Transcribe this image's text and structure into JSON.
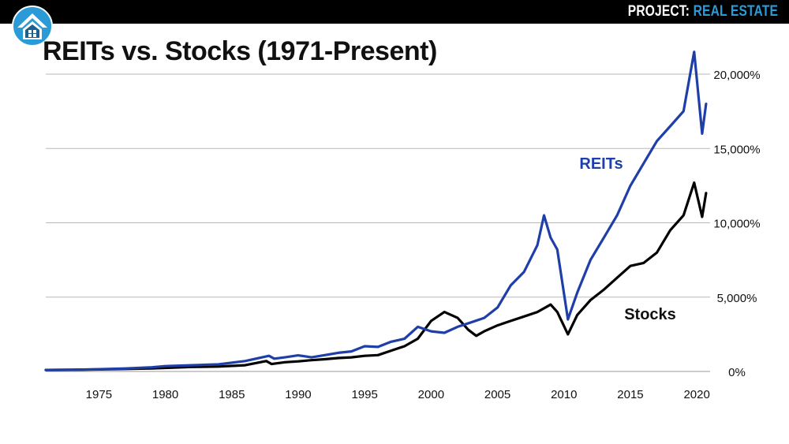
{
  "header": {
    "brand_prefix": "PROJECT:",
    "brand_accent": "REAL ESTATE"
  },
  "logo": {
    "icon": "house-arrow-icon"
  },
  "chart_data": {
    "type": "line",
    "title": "REITs vs. Stocks (1971-Present)",
    "xlabel": "",
    "ylabel": "",
    "xlim": [
      1971,
      2021
    ],
    "ylim": [
      0,
      20000
    ],
    "grid": true,
    "x_ticks": [
      1975,
      1980,
      1985,
      1990,
      1995,
      2000,
      2005,
      2010,
      2015,
      2020
    ],
    "x_tick_labels": [
      "1975",
      "1980",
      "1985",
      "1990",
      "1995",
      "2000",
      "2005",
      "2010",
      "2015",
      "2020"
    ],
    "y_ticks": [
      0,
      5000,
      10000,
      15000,
      20000
    ],
    "y_tick_labels": [
      "0%",
      "5,000%",
      "10,000%",
      "15,000%",
      "20,000%"
    ],
    "colors": {
      "reits": "#1f3fa8",
      "stocks": "#000000",
      "grid": "#b8b8b8",
      "axis": "#9a9a9a"
    },
    "series": [
      {
        "name": "REITs",
        "x": [
          1971,
          1973,
          1975,
          1977,
          1979,
          1980,
          1982,
          1984,
          1986,
          1987.8,
          1988.2,
          1989,
          1990,
          1991,
          1992,
          1993,
          1994,
          1995,
          1996,
          1997,
          1998,
          1999,
          2000,
          2001,
          2002,
          2003,
          2004,
          2005,
          2006,
          2007,
          2008,
          2008.5,
          2009,
          2009.5,
          2010.3,
          2011,
          2012,
          2013,
          2014,
          2015,
          2016,
          2017,
          2018,
          2019,
          2019.8,
          2020.4,
          2020.7
        ],
        "values": [
          100,
          110,
          150,
          200,
          280,
          360,
          420,
          480,
          700,
          1050,
          860,
          950,
          1080,
          950,
          1100,
          1250,
          1350,
          1700,
          1650,
          2000,
          2200,
          3000,
          2700,
          2600,
          3000,
          3300,
          3600,
          4300,
          5800,
          6700,
          8500,
          10500,
          9000,
          8200,
          3500,
          5300,
          7500,
          9000,
          10500,
          12500,
          14000,
          15500,
          16500,
          17500,
          21500,
          16000,
          18000
        ]
      },
      {
        "name": "Stocks",
        "x": [
          1971,
          1973,
          1975,
          1977,
          1979,
          1980,
          1982,
          1984,
          1986,
          1987.6,
          1988,
          1989,
          1990,
          1991,
          1992,
          1993,
          1994,
          1995,
          1996,
          1997,
          1998,
          1999,
          2000,
          2001,
          2002,
          2002.8,
          2003.4,
          2004,
          2005,
          2006,
          2007,
          2008,
          2009,
          2009.5,
          2010.3,
          2011,
          2012,
          2013,
          2014,
          2015,
          2016,
          2017,
          2018,
          2019,
          2019.8,
          2020.4,
          2020.7
        ],
        "values": [
          100,
          110,
          140,
          170,
          200,
          240,
          300,
          330,
          420,
          700,
          500,
          620,
          680,
          760,
          820,
          900,
          950,
          1050,
          1100,
          1400,
          1700,
          2200,
          3400,
          4000,
          3600,
          2800,
          2400,
          2700,
          3100,
          3400,
          3700,
          4000,
          4500,
          4000,
          2500,
          3800,
          4800,
          5500,
          6300,
          7100,
          7300,
          8000,
          9500,
          10500,
          12700,
          10400,
          12000
        ]
      }
    ],
    "annotations": [
      {
        "text": "REITs",
        "series": "REITs"
      },
      {
        "text": "Stocks",
        "series": "Stocks"
      }
    ]
  }
}
